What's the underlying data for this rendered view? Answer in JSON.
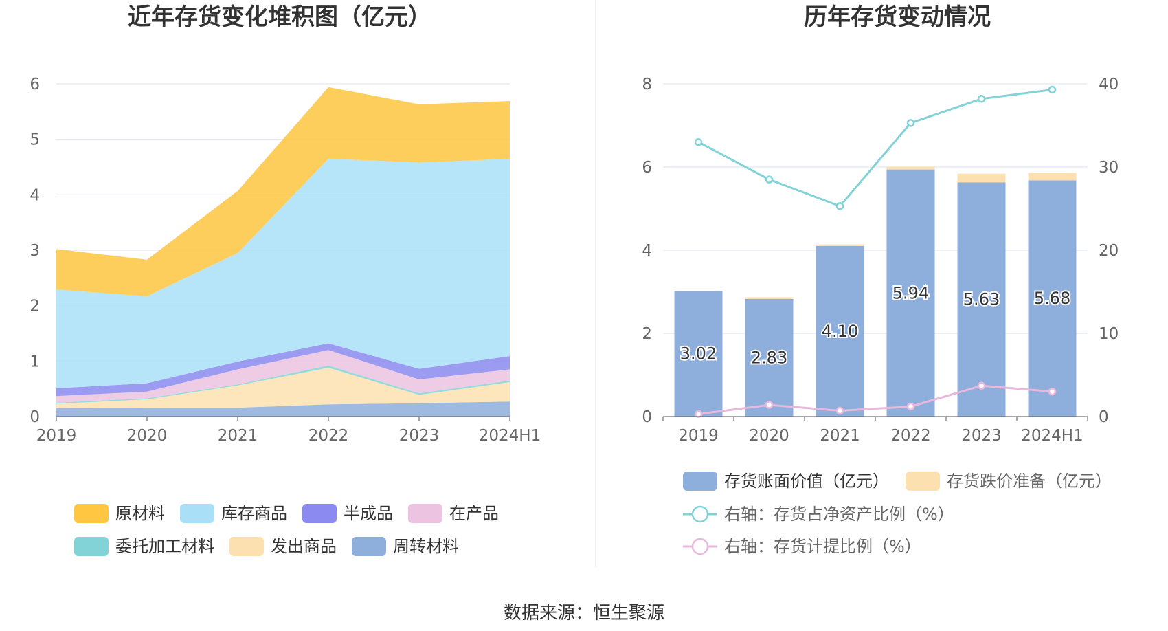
{
  "source": "数据来源：恒生聚源",
  "chart_data": [
    {
      "type": "area",
      "stacked": true,
      "title": "近年存货变化堆积图（亿元）",
      "x": [
        "2019",
        "2020",
        "2021",
        "2022",
        "2023",
        "2024H1"
      ],
      "ylim": [
        0,
        6
      ],
      "yticks": [
        "0",
        "1",
        "2",
        "3",
        "4",
        "5",
        "6"
      ],
      "grid": true,
      "legend_position": "bottom",
      "series": [
        {
          "name": "周转材料",
          "color": "#8eaedb",
          "values": [
            0.15,
            0.16,
            0.16,
            0.22,
            0.24,
            0.27
          ]
        },
        {
          "name": "发出商品",
          "color": "#fde0b0",
          "values": [
            0.08,
            0.15,
            0.4,
            0.66,
            0.15,
            0.35
          ]
        },
        {
          "name": "委托加工材料",
          "color": "#82d3d8",
          "values": [
            0.02,
            0.02,
            0.02,
            0.04,
            0.03,
            0.03
          ]
        },
        {
          "name": "在产品",
          "color": "#ecc3e0",
          "values": [
            0.12,
            0.12,
            0.27,
            0.28,
            0.25,
            0.2
          ]
        },
        {
          "name": "半成品",
          "color": "#8a8af0",
          "values": [
            0.14,
            0.15,
            0.14,
            0.12,
            0.19,
            0.24
          ]
        },
        {
          "name": "库存商品",
          "color": "#a9e0f8",
          "values": [
            1.78,
            1.57,
            1.96,
            3.33,
            3.72,
            3.56
          ]
        },
        {
          "name": "原材料",
          "color": "#fec641",
          "values": [
            0.73,
            0.66,
            1.12,
            1.29,
            1.05,
            1.04
          ]
        }
      ],
      "legend_order": [
        "原材料",
        "库存商品",
        "半成品",
        "在产品",
        "委托加工材料",
        "发出商品",
        "周转材料"
      ]
    },
    {
      "type": "bar",
      "title": "历年存货变动情况",
      "categories": [
        "2019",
        "2020",
        "2021",
        "2022",
        "2023",
        "2024H1"
      ],
      "ylim": [
        0,
        8
      ],
      "yticks": [
        "0",
        "2",
        "4",
        "6",
        "8"
      ],
      "y2lim": [
        0,
        40
      ],
      "y2ticks": [
        "0",
        "10",
        "20",
        "30",
        "40"
      ],
      "grid": true,
      "legend_position": "bottom",
      "bars": [
        {
          "name": "存货账面价值（亿元）",
          "color": "#8eaedb",
          "values": [
            3.02,
            2.83,
            4.1,
            5.94,
            5.63,
            5.68
          ],
          "labels": [
            "3.02",
            "2.83",
            "4.10",
            "5.94",
            "5.63",
            "5.68"
          ]
        },
        {
          "name": "存货跌价准备（亿元）",
          "color": "#fde0b0",
          "values": [
            0.0,
            0.04,
            0.04,
            0.07,
            0.21,
            0.18
          ]
        }
      ],
      "lines": [
        {
          "name": "右轴：存货占净资产比例（%）",
          "color": "#82d3d8",
          "values": [
            33.0,
            28.5,
            25.3,
            35.3,
            38.2,
            39.3
          ]
        },
        {
          "name": "右轴：存货计提比例（%）",
          "color": "#e8b8dd",
          "values": [
            0.3,
            1.4,
            0.7,
            1.2,
            3.7,
            3.0
          ]
        }
      ]
    }
  ]
}
